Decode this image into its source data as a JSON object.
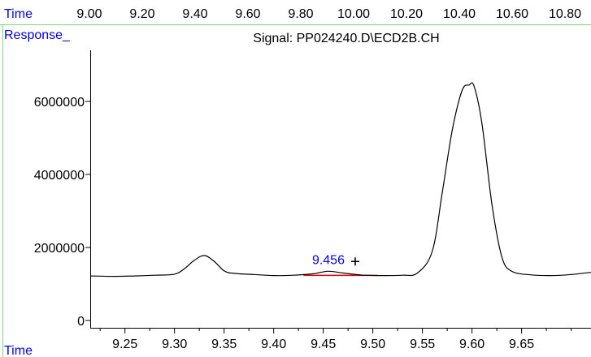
{
  "top_ruler": {
    "label": "Time",
    "ticks": [
      "9.00",
      "9.20",
      "9.40",
      "9.60",
      "9.80",
      "10.00",
      "10.20",
      "10.40",
      "10.60",
      "10.80"
    ]
  },
  "colors": {
    "axis_label": "#0000ee",
    "frame": "#7fd67f",
    "trace": "#000000",
    "baseline": "#e00000",
    "peak_label": "#0000ee"
  },
  "chart_data": {
    "type": "line",
    "title": "Signal: PP024240.D\\ECD2B.CH",
    "ylabel": "Response_",
    "xlabel": "Time",
    "xlim": [
      9.215,
      9.72
    ],
    "ylim": [
      -200000,
      7400000
    ],
    "yticks": [
      0,
      2000000,
      4000000,
      6000000
    ],
    "ytick_labels": [
      "0",
      "2000000",
      "4000000",
      "6000000"
    ],
    "xticks": [
      9.25,
      9.3,
      9.35,
      9.4,
      9.45,
      9.5,
      9.55,
      9.6,
      9.65
    ],
    "xtick_labels": [
      "9.25",
      "9.30",
      "9.35",
      "9.40",
      "9.45",
      "9.50",
      "9.55",
      "9.60",
      "9.65"
    ],
    "series": [
      {
        "x": [
          9.215,
          9.24,
          9.26,
          9.28,
          9.3,
          9.31,
          9.32,
          9.33,
          9.34,
          9.35,
          9.36,
          9.38,
          9.4,
          9.42,
          9.44,
          9.455,
          9.47,
          9.49,
          9.51,
          9.53,
          9.545,
          9.56,
          9.57,
          9.58,
          9.59,
          9.597,
          9.602,
          9.61,
          9.62,
          9.63,
          9.64,
          9.66,
          9.68,
          9.7,
          9.72
        ],
        "y": [
          1220000,
          1210000,
          1220000,
          1240000,
          1270000,
          1420000,
          1650000,
          1780000,
          1620000,
          1360000,
          1290000,
          1260000,
          1230000,
          1240000,
          1280000,
          1350000,
          1300000,
          1240000,
          1230000,
          1240000,
          1300000,
          1900000,
          3500000,
          5200000,
          6300000,
          6450000,
          6420000,
          5400000,
          3200000,
          1750000,
          1350000,
          1250000,
          1230000,
          1260000,
          1320000
        ]
      }
    ],
    "baseline": {
      "x": [
        9.43,
        9.505
      ],
      "y": [
        1235000,
        1235000
      ]
    },
    "annotations": [
      {
        "text": "9.456",
        "x": 9.456,
        "y": 1350000
      }
    ]
  }
}
